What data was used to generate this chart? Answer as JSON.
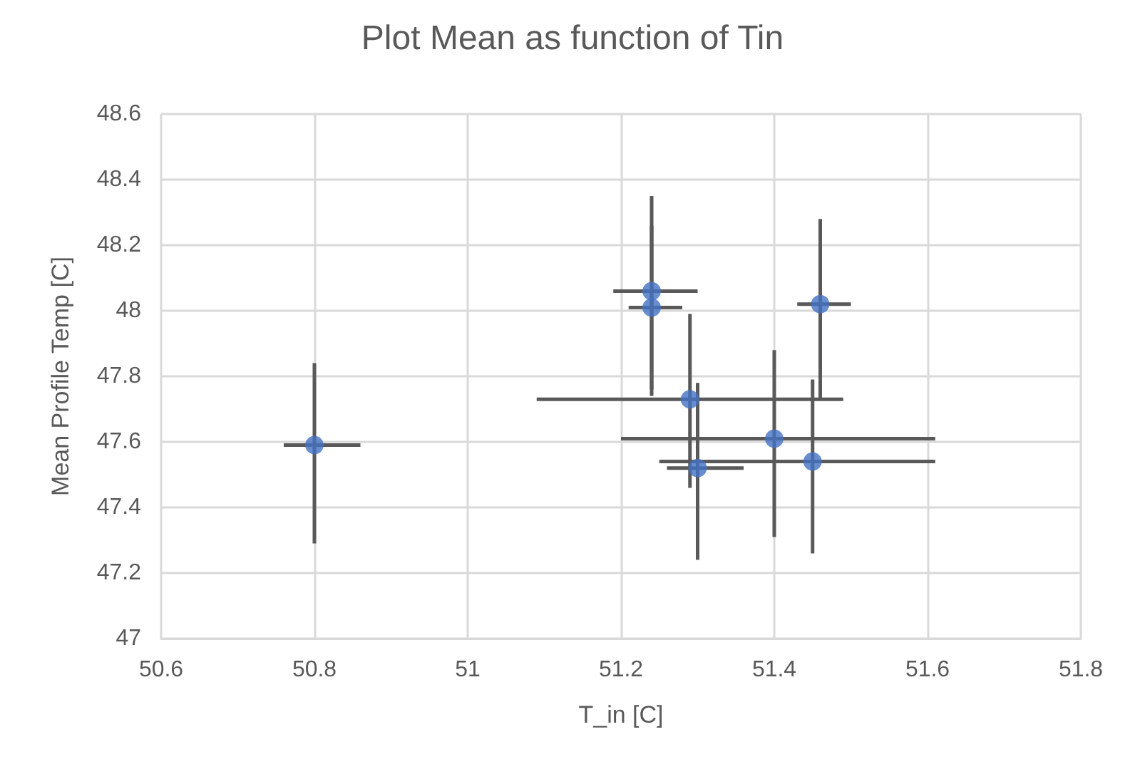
{
  "chart_data": {
    "type": "scatter",
    "title": "Plot Mean as function of Tin",
    "xlabel": "T_in [C]",
    "ylabel": "Mean Profile Temp [C]",
    "x": [
      50.8,
      51.24,
      51.24,
      51.29,
      51.3,
      51.4,
      51.45,
      51.46
    ],
    "values": [
      47.59,
      48.06,
      48.01,
      47.73,
      47.52,
      47.61,
      47.54,
      48.02
    ],
    "errors": [
      [
        47.29,
        47.84
      ],
      [
        47.76,
        48.35
      ],
      [
        47.74,
        48.26
      ],
      [
        47.46,
        47.99
      ],
      [
        47.24,
        47.78
      ],
      [
        47.31,
        47.88
      ],
      [
        47.26,
        47.79
      ],
      [
        47.73,
        48.28
      ]
    ],
    "xerrors": [
      [
        50.76,
        50.86
      ],
      [
        51.19,
        51.3
      ],
      [
        51.21,
        51.28
      ],
      [
        51.09,
        51.49
      ],
      [
        51.26,
        51.36
      ],
      [
        51.2,
        51.61
      ],
      [
        51.25,
        51.61
      ],
      [
        51.43,
        51.5
      ]
    ],
    "color": "#4472c4",
    "marker": "circle",
    "xlim": [
      50.6,
      51.8
    ],
    "xticks": [
      50.6,
      50.8,
      51,
      51.2,
      51.4,
      51.6,
      51.8
    ],
    "ylim": [
      47,
      48.6
    ],
    "yticks": [
      47,
      47.2,
      47.4,
      47.6,
      47.8,
      48,
      48.2,
      48.4,
      48.6
    ],
    "grid": true
  }
}
